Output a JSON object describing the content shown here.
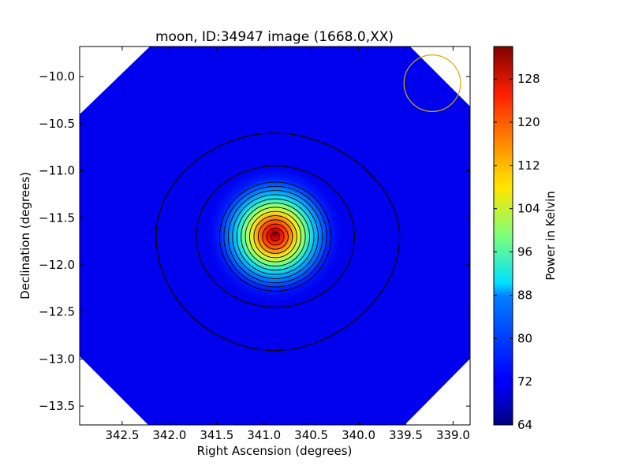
{
  "chart_data": {
    "type": "heatmap",
    "title": "moon, ID:34947 image (1668.0,XX)",
    "xlabel": "Right Ascension (degrees)",
    "ylabel": "Declination (degrees)",
    "colorbar_label": "Power in Kelvin",
    "colormap": "jet",
    "x_axis_inverted": true,
    "xlim": [
      342.95,
      338.82
    ],
    "ylim": [
      -13.7,
      -9.68
    ],
    "x_ticks": [
      342.5,
      342.0,
      341.5,
      341.0,
      340.5,
      340.0,
      339.5,
      339.0
    ],
    "x_tick_labels": [
      "342.5",
      "342.0",
      "341.5",
      "341.0",
      "340.5",
      "340.0",
      "339.5",
      "339.0"
    ],
    "y_ticks": [
      -10.0,
      -10.5,
      -11.0,
      -11.5,
      -12.0,
      -12.5,
      -13.0,
      -13.5
    ],
    "y_tick_labels": [
      "−10.0",
      "−10.5",
      "−11.0",
      "−11.5",
      "−12.0",
      "−12.5",
      "−13.0",
      "−13.5"
    ],
    "colorbar_range": [
      64,
      134
    ],
    "colorbar_ticks": [
      64,
      72,
      80,
      88,
      96,
      104,
      112,
      120,
      128
    ],
    "colorbar_tick_labels": [
      "64",
      "72",
      "80",
      "88",
      "96",
      "104",
      "112",
      "120",
      "128"
    ],
    "background_level": 70,
    "source_peak": {
      "ra": 340.88,
      "dec": -11.7,
      "value": 134
    },
    "beam_circle": {
      "ra": 339.22,
      "dec": -10.07,
      "radius_deg": 0.3,
      "color": "#c8b400"
    },
    "outer_contour_radii_deg": [
      1.1,
      0.75
    ],
    "inner_contour_count": 13,
    "grid": false
  }
}
